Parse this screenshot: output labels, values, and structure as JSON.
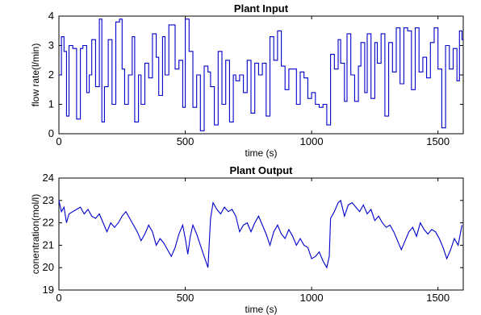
{
  "chart_data": [
    {
      "type": "line",
      "title": "Plant Input",
      "xlabel": "time (s)",
      "ylabel": "flow rate(l/min)",
      "xlim": [
        0,
        1600
      ],
      "ylim": [
        0,
        4
      ],
      "xticks": [
        0,
        500,
        1000,
        1500
      ],
      "yticks": [
        0,
        1,
        2,
        3,
        4
      ],
      "grid": false,
      "step": true,
      "color": "#0000cc",
      "series": [
        {
          "x": [
            0,
            10,
            20,
            30,
            40,
            55,
            70,
            85,
            95,
            110,
            120,
            130,
            145,
            160,
            170,
            180,
            195,
            210,
            225,
            240,
            250,
            260,
            275,
            290,
            300,
            315,
            325,
            340,
            355,
            370,
            385,
            395,
            410,
            420,
            435,
            450,
            460,
            475,
            490,
            500,
            515,
            530,
            545,
            560,
            575,
            590,
            600,
            615,
            630,
            645,
            660,
            675,
            690,
            700,
            715,
            730,
            745,
            760,
            775,
            790,
            805,
            820,
            835,
            850,
            865,
            880,
            895,
            910,
            925,
            940,
            955,
            970,
            985,
            1000,
            1015,
            1030,
            1045,
            1060,
            1075,
            1090,
            1105,
            1115,
            1130,
            1140,
            1155,
            1170,
            1185,
            1195,
            1210,
            1220,
            1235,
            1250,
            1260,
            1275,
            1290,
            1305,
            1320,
            1335,
            1350,
            1365,
            1380,
            1395,
            1410,
            1425,
            1440,
            1455,
            1470,
            1485,
            1500,
            1515,
            1530,
            1545,
            1560,
            1575,
            1585,
            1595
          ],
          "y": [
            2.0,
            3.3,
            2.8,
            0.6,
            3.0,
            2.9,
            0.5,
            2.9,
            3.0,
            1.4,
            2.0,
            3.2,
            1.6,
            3.9,
            0.4,
            1.6,
            3.2,
            1.0,
            3.8,
            3.9,
            2.2,
            1.0,
            2.0,
            3.3,
            0.4,
            2.0,
            1.0,
            2.4,
            1.9,
            3.4,
            2.6,
            1.3,
            3.3,
            2.0,
            3.7,
            3.7,
            2.2,
            2.5,
            0.9,
            3.9,
            2.8,
            0.9,
            2.0,
            0.1,
            2.3,
            2.1,
            1.6,
            0.3,
            2.8,
            1.0,
            2.5,
            0.4,
            2.0,
            1.8,
            2.0,
            1.4,
            2.5,
            0.7,
            2.4,
            2.0,
            2.4,
            0.6,
            3.3,
            2.5,
            3.5,
            2.3,
            1.5,
            2.2,
            2.2,
            1.0,
            2.1,
            1.9,
            1.2,
            1.4,
            1.0,
            0.9,
            1.0,
            0.3,
            2.7,
            2.2,
            3.2,
            2.4,
            1.1,
            3.4,
            2.0,
            1.1,
            2.3,
            3.1,
            1.4,
            3.4,
            1.2,
            3.1,
            2.4,
            3.4,
            0.6,
            3.1,
            2.1,
            3.6,
            1.7,
            3.6,
            3.5,
            1.5,
            3.6,
            2.1,
            2.6,
            1.9,
            3.1,
            3.6,
            2.2,
            0.2,
            3.0,
            2.2,
            2.9,
            1.8,
            3.5,
            3.2
          ]
        }
      ]
    },
    {
      "type": "line",
      "title": "Plant Output",
      "xlabel": "time (s)",
      "ylabel": "conentration(mol/l)",
      "xlim": [
        0,
        1600
      ],
      "ylim": [
        19,
        24
      ],
      "xticks": [
        0,
        500,
        1000,
        1500
      ],
      "yticks": [
        19,
        20,
        21,
        22,
        23,
        24
      ],
      "grid": false,
      "step": false,
      "color": "#0000cc",
      "series": [
        {
          "x": [
            0,
            10,
            20,
            30,
            40,
            55,
            70,
            85,
            100,
            115,
            130,
            145,
            160,
            175,
            190,
            205,
            220,
            235,
            250,
            265,
            280,
            295,
            310,
            325,
            340,
            355,
            370,
            385,
            400,
            415,
            430,
            445,
            460,
            475,
            490,
            500,
            510,
            520,
            530,
            545,
            560,
            575,
            590,
            600,
            610,
            625,
            640,
            655,
            670,
            685,
            700,
            715,
            730,
            745,
            760,
            775,
            790,
            805,
            820,
            835,
            850,
            865,
            880,
            895,
            910,
            925,
            940,
            955,
            970,
            985,
            1000,
            1015,
            1030,
            1045,
            1060,
            1070,
            1075,
            1090,
            1105,
            1115,
            1130,
            1145,
            1160,
            1175,
            1190,
            1205,
            1220,
            1235,
            1250,
            1265,
            1280,
            1295,
            1310,
            1325,
            1340,
            1355,
            1370,
            1385,
            1400,
            1415,
            1430,
            1445,
            1460,
            1475,
            1490,
            1505,
            1520,
            1535,
            1550,
            1565,
            1580,
            1595
          ],
          "y": [
            23.0,
            22.5,
            22.7,
            22.0,
            22.4,
            22.5,
            22.6,
            22.7,
            22.4,
            22.6,
            22.3,
            22.2,
            22.4,
            22.0,
            21.6,
            22.0,
            21.8,
            22.0,
            22.3,
            22.5,
            22.2,
            21.9,
            21.6,
            21.2,
            21.5,
            21.9,
            21.6,
            21.0,
            21.3,
            21.1,
            20.8,
            20.5,
            20.9,
            21.5,
            21.9,
            21.3,
            20.6,
            21.4,
            21.9,
            21.5,
            21.0,
            20.5,
            20.0,
            22.2,
            22.9,
            22.6,
            22.4,
            22.7,
            22.5,
            22.6,
            22.3,
            21.6,
            21.9,
            22.0,
            21.6,
            22.0,
            22.3,
            21.9,
            21.5,
            21.0,
            21.6,
            21.9,
            21.5,
            21.3,
            21.7,
            21.4,
            21.0,
            21.3,
            21.0,
            20.9,
            20.4,
            20.5,
            20.7,
            20.3,
            20.0,
            20.5,
            22.2,
            22.5,
            22.9,
            23.0,
            22.3,
            22.8,
            22.9,
            22.7,
            22.5,
            22.8,
            22.4,
            22.6,
            22.1,
            22.3,
            22.0,
            21.8,
            21.9,
            21.6,
            21.2,
            20.8,
            21.2,
            21.6,
            21.8,
            21.4,
            22.0,
            21.7,
            21.5,
            21.7,
            21.6,
            21.3,
            20.9,
            20.4,
            20.8,
            21.3,
            21.0,
            21.9
          ]
        }
      ]
    }
  ]
}
